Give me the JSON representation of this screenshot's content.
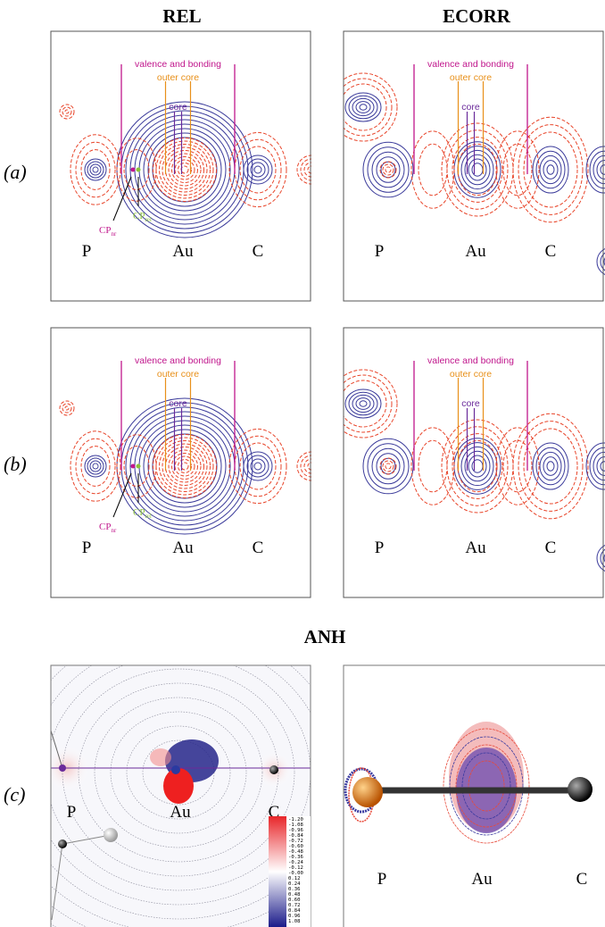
{
  "column_titles": [
    "REL",
    "ECORR"
  ],
  "section_title": "ANH",
  "row_labels": [
    "(a)",
    "(b)",
    "(c)"
  ],
  "region_labels": {
    "valence": "valence and bonding",
    "outer_core": "outer core",
    "core": "core"
  },
  "critical_points": [
    {
      "symbol": "CP",
      "subscript": "nr"
    },
    {
      "symbol": "CP",
      "subscript": "rel"
    }
  ],
  "atoms": [
    "P",
    "Au",
    "C"
  ],
  "colorbar_labels": [
    "-1.20",
    "-1.08",
    "-0.96",
    "-0.84",
    "-0.72",
    "-0.60",
    "-0.48",
    "-0.36",
    "-0.24",
    "-0.12",
    "-0.00",
    "0.12",
    "0.24",
    "0.36",
    "0.48",
    "0.60",
    "0.72",
    "0.84",
    "0.96",
    "1.08"
  ]
}
